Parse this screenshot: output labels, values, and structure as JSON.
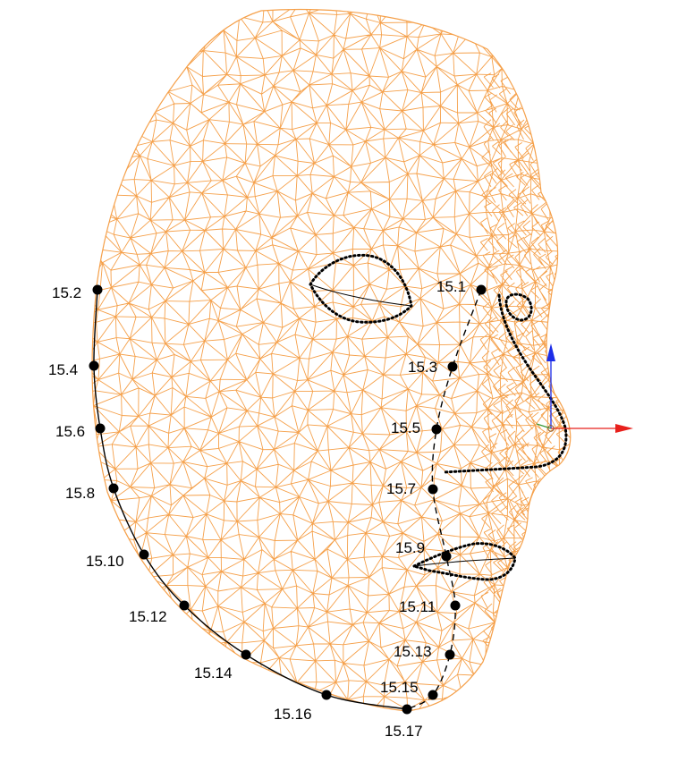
{
  "colors": {
    "mesh": "#f5a04a",
    "outline": "#000000",
    "axis_x": "#e8201c",
    "axis_y": "#1c2de8",
    "axis_z": "#3a9a3a",
    "background": "#ffffff"
  },
  "landmarks": [
    {
      "id": "15.1",
      "label": "15.1"
    },
    {
      "id": "15.2",
      "label": "15.2"
    },
    {
      "id": "15.3",
      "label": "15.3"
    },
    {
      "id": "15.4",
      "label": "15.4"
    },
    {
      "id": "15.5",
      "label": "15.5"
    },
    {
      "id": "15.6",
      "label": "15.6"
    },
    {
      "id": "15.7",
      "label": "15.7"
    },
    {
      "id": "15.8",
      "label": "15.8"
    },
    {
      "id": "15.9",
      "label": "15.9"
    },
    {
      "id": "15.10",
      "label": "15.10"
    },
    {
      "id": "15.11",
      "label": "15.11"
    },
    {
      "id": "15.12",
      "label": "15.12"
    },
    {
      "id": "15.13",
      "label": "15.13"
    },
    {
      "id": "15.14",
      "label": "15.14"
    },
    {
      "id": "15.15",
      "label": "15.15"
    },
    {
      "id": "15.16",
      "label": "15.16"
    },
    {
      "id": "15.17",
      "label": "15.17"
    }
  ],
  "features": {
    "eye": "eye-outline",
    "nose": "nose-outline",
    "lips": "lips-outline",
    "nostril": "nostril-outline"
  }
}
